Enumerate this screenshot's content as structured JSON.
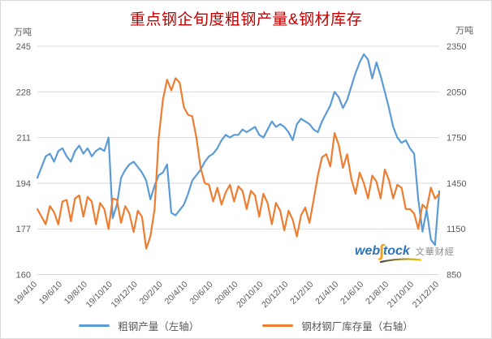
{
  "title": "重点钢企旬度粗钢产量&钢材库存",
  "colors": {
    "title": "#c00000",
    "blue_series": "#5b9bd5",
    "orange_series": "#ed7d31",
    "gridline": "#d9d9d9",
    "axis_text": "#595959",
    "watermark_blue": "#2e74b5",
    "watermark_orange": "#f2a01d",
    "watermark_gray": "#8c8c8c"
  },
  "left_axis_unit": "万吨",
  "right_axis_unit": "万吨",
  "legend": {
    "items": [
      {
        "label": "粗钢产量（左轴）",
        "color": "#5b9bd5"
      },
      {
        "label": "钢材钢厂库存量（右轴）",
        "color": "#ed7d31"
      }
    ]
  },
  "watermark": {
    "web": "web",
    "s_glyph": "∫",
    "tock": "tock",
    "cn": "文華财經"
  },
  "chart_data": {
    "type": "line",
    "title": "重点钢企旬度粗钢产量&钢材库存",
    "xlabel": "",
    "ylabel_left": "万吨",
    "ylabel_right": "万吨",
    "grid": true,
    "legend_position": "bottom",
    "x_tick_labels": [
      "19/4/10",
      "19/6/10",
      "19/8/10",
      "19/10/10",
      "19/12/10",
      "20/2/10",
      "20/4/10",
      "20/6/10",
      "20/8/10",
      "20/10/10",
      "20/12/10",
      "21/2/10",
      "21/4/10",
      "21/6/10",
      "21/8/10",
      "21/10/10",
      "21/12/10"
    ],
    "points_per_tick": 6,
    "left_axis": {
      "unit": "万吨",
      "range": [
        160,
        245
      ],
      "ticks": [
        245,
        228,
        211,
        194,
        177,
        160
      ]
    },
    "right_axis": {
      "unit": "万吨",
      "range": [
        850,
        2350
      ],
      "ticks": [
        2350,
        2050,
        1750,
        1450,
        1150,
        850
      ]
    },
    "series": [
      {
        "name": "粗钢产量（左轴）",
        "axis": "left",
        "color": "#5b9bd5",
        "values": [
          196,
          200,
          204,
          205,
          202,
          206,
          207,
          204,
          202,
          206,
          208,
          205,
          207,
          204,
          206,
          207,
          206,
          211,
          181,
          186,
          196,
          199,
          201,
          202,
          200,
          198,
          195,
          188,
          193,
          197,
          198,
          201,
          183,
          182,
          184,
          186,
          190,
          195,
          197,
          199,
          202,
          204,
          205,
          207,
          210,
          212,
          211,
          212,
          212,
          214,
          213,
          214,
          215,
          212,
          211,
          214,
          217,
          215,
          216,
          215,
          213,
          210,
          216,
          218,
          217,
          216,
          214,
          213,
          217,
          220,
          223,
          228,
          226,
          222,
          225,
          230,
          235,
          239,
          242,
          240,
          233,
          239,
          234,
          228,
          222,
          215,
          211,
          209,
          210,
          207,
          205,
          188,
          176,
          184,
          173,
          171,
          191
        ]
      },
      {
        "name": "钢材钢厂库存量（右轴）",
        "axis": "right",
        "color": "#ed7d31",
        "values": [
          1280,
          1230,
          1180,
          1300,
          1260,
          1180,
          1330,
          1340,
          1200,
          1350,
          1370,
          1230,
          1360,
          1330,
          1180,
          1320,
          1280,
          1150,
          1350,
          1340,
          1190,
          1300,
          1250,
          1130,
          1270,
          1230,
          1020,
          1100,
          1280,
          1750,
          2000,
          2130,
          2060,
          2140,
          2110,
          1950,
          1900,
          1890,
          1750,
          1550,
          1450,
          1440,
          1330,
          1420,
          1310,
          1390,
          1440,
          1330,
          1430,
          1400,
          1280,
          1400,
          1370,
          1230,
          1380,
          1320,
          1180,
          1320,
          1270,
          1140,
          1270,
          1210,
          1100,
          1240,
          1290,
          1190,
          1340,
          1500,
          1620,
          1640,
          1560,
          1780,
          1700,
          1550,
          1640,
          1480,
          1380,
          1520,
          1450,
          1350,
          1500,
          1460,
          1350,
          1540,
          1470,
          1350,
          1440,
          1420,
          1280,
          1280,
          1250,
          1150,
          1310,
          1280,
          1420,
          1350,
          1380
        ]
      }
    ]
  }
}
